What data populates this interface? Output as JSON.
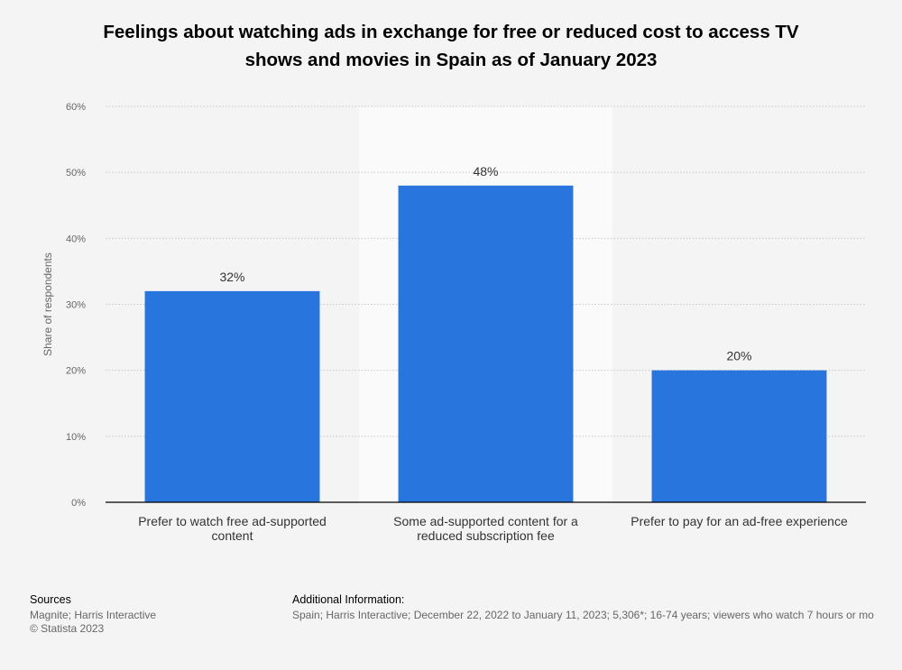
{
  "chart_data": {
    "type": "bar",
    "title": "Feelings about watching ads in exchange for free or reduced cost to access TV shows and movies in Spain as of January 2023",
    "title_lines": [
      "Feelings about watching ads in exchange for free or reduced cost to access TV",
      "shows and movies in Spain as of January 2023"
    ],
    "categories": [
      "Prefer to watch free ad-supported content",
      "Some ad-supported content for a reduced subscription fee",
      "Prefer to pay for an ad-free experience"
    ],
    "category_lines": [
      [
        "Prefer to watch free ad-supported",
        "content"
      ],
      [
        "Some ad-supported content for a",
        "reduced subscription fee"
      ],
      [
        "Prefer to pay for an ad-free experience"
      ]
    ],
    "values": [
      32,
      48,
      20
    ],
    "data_labels": [
      "32%",
      "48%",
      "20%"
    ],
    "xlabel": "",
    "ylabel": "Share of respondents",
    "ylim": [
      0,
      60
    ],
    "yticks": [
      0,
      10,
      20,
      30,
      40,
      50,
      60
    ],
    "ytick_labels": [
      "0%",
      "10%",
      "20%",
      "30%",
      "40%",
      "50%",
      "60%"
    ],
    "highlighted_category": 1,
    "colors": {
      "bar": "#2876dd",
      "highlight_band": "#fafafa",
      "grid": "#c8c8c8",
      "axis": "#000000",
      "label": "#333333"
    }
  },
  "footer": {
    "sources_heading": "Sources",
    "sources_lines": [
      "Magnite; Harris Interactive",
      "© Statista 2023"
    ],
    "additional_heading": "Additional Information:",
    "additional_text": "Spain; Harris Interactive; December 22, 2022 to January 11, 2023; 5,306*; 16-74 years; viewers who watch 7 hours or mo"
  }
}
